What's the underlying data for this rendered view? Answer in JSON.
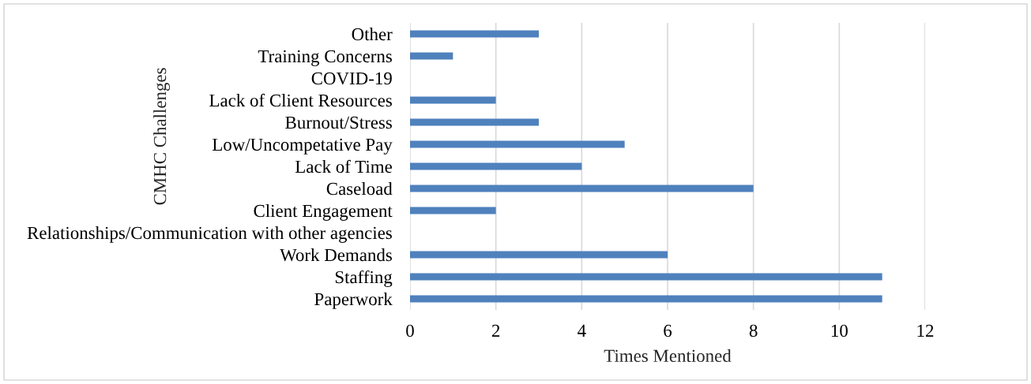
{
  "chart_data": {
    "type": "bar",
    "orientation": "horizontal",
    "categories": [
      "Other",
      "Training Concerns",
      "COVID-19",
      "Lack of Client Resources",
      "Burnout/Stress",
      "Low/Uncompetative Pay",
      "Lack of Time",
      "Caseload",
      "Client Engagement",
      "Relationships/Communication with other agencies",
      "Work Demands",
      "Staffing",
      "Paperwork"
    ],
    "values": [
      3,
      1,
      0,
      2,
      3,
      5,
      4,
      8,
      2,
      0,
      6,
      11,
      11
    ],
    "color": "#4f81bd",
    "xlim": [
      0,
      12
    ],
    "xticks": [
      0,
      2,
      4,
      6,
      8,
      10,
      12
    ],
    "xlabel": "Times Mentioned",
    "ylabel": "CMHC Challenges",
    "grid": "x"
  }
}
